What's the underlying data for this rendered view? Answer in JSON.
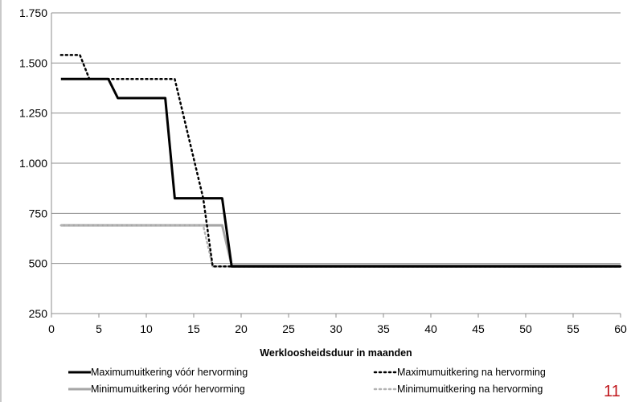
{
  "chart_data": {
    "type": "line",
    "title": "",
    "xlabel": "Werkloosheidsduur  in maanden",
    "ylabel": "",
    "xlim": [
      0,
      60
    ],
    "ylim": [
      250,
      1750
    ],
    "xticks": [
      0,
      5,
      10,
      15,
      20,
      25,
      30,
      35,
      40,
      45,
      50,
      55,
      60
    ],
    "yticks": [
      250,
      500,
      750,
      1000,
      1250,
      1500,
      1750
    ],
    "ytick_labels": [
      "250",
      "500",
      "750",
      "1.000",
      "1.250",
      "1.500",
      "1.750"
    ],
    "grid": "horizontal",
    "legend_position": "bottom",
    "series": [
      {
        "name": "Maximumuitkering vóór hervorming",
        "color": "#000000",
        "style": "solid",
        "x": [
          1,
          6,
          7,
          12,
          13,
          18,
          19,
          60
        ],
        "y": [
          1420,
          1420,
          1325,
          1325,
          825,
          825,
          485,
          485
        ]
      },
      {
        "name": "Maximumuitkering na hervorming",
        "color": "#000000",
        "style": "dotted",
        "x": [
          1,
          3,
          4,
          13,
          16,
          17,
          19,
          60
        ],
        "y": [
          1540,
          1540,
          1420,
          1420,
          825,
          485,
          485,
          485
        ]
      },
      {
        "name": "Minimumuitkering vóór hervorming",
        "color": "#a6a6a6",
        "style": "solid",
        "x": [
          1,
          18,
          19,
          60
        ],
        "y": [
          690,
          690,
          490,
          490
        ]
      },
      {
        "name": "Minimumuitkering na hervorming",
        "color": "#b3b3b3",
        "style": "dotted",
        "x": [
          1,
          16,
          17,
          60
        ],
        "y": [
          690,
          690,
          485,
          485
        ]
      }
    ]
  },
  "page_number": "11"
}
